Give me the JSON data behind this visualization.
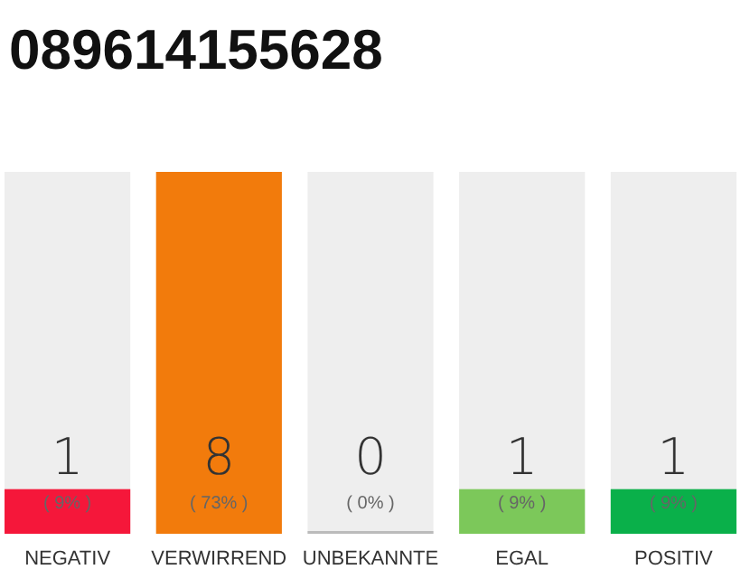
{
  "chart_data": {
    "type": "bar",
    "title": "089614155628",
    "categories": [
      "NEGATIV",
      "VERWIRREND",
      "UNBEKANNTE",
      "EGAL",
      "POSITIV"
    ],
    "values": [
      9,
      73,
      0,
      9,
      9
    ],
    "value_labels": [
      "( 9% )",
      "( 73% )",
      "( 0% )",
      "( 9% )",
      "( 9% )"
    ],
    "colors": [
      "#f5173a",
      "#f27b0c",
      "#bbbbbb",
      "#7cc85a",
      "#0ab04a"
    ],
    "annotations": [
      "1",
      "8",
      "0",
      "1",
      "1"
    ]
  }
}
